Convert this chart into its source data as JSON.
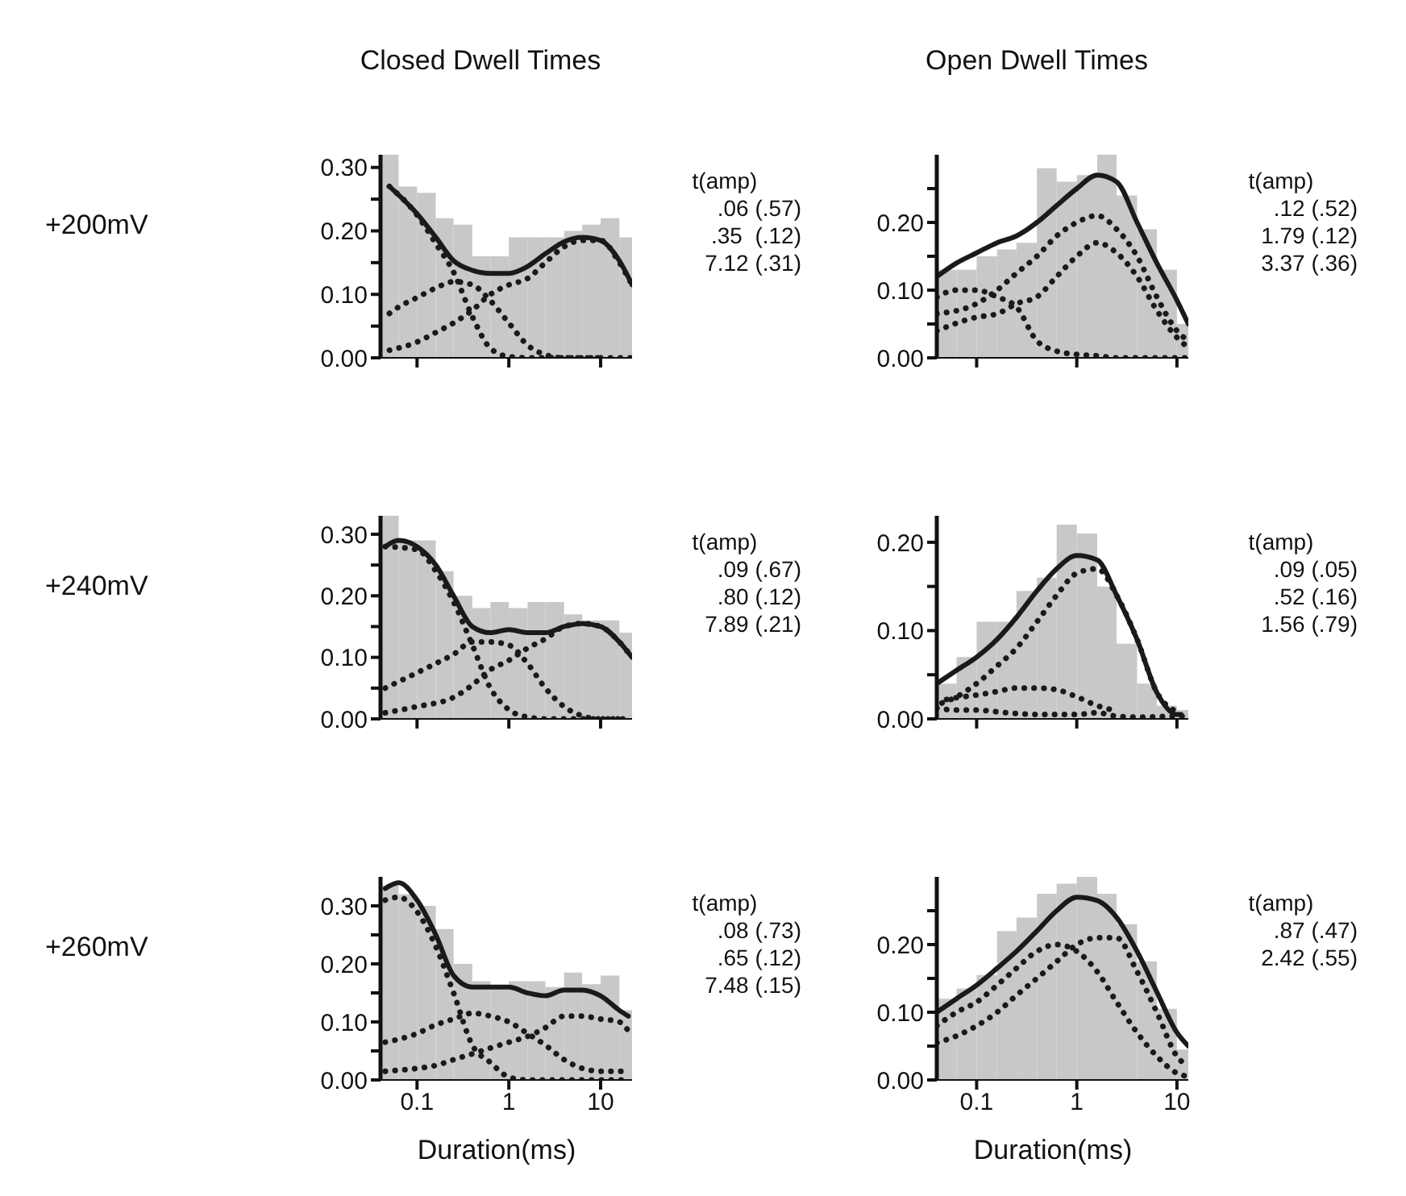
{
  "chart_data": [
    {
      "type": "histogram",
      "title": "Closed Dwell Times",
      "ylabel": "+200mV",
      "bins": [
        0.04,
        0.063,
        0.1,
        0.16,
        0.25,
        0.4,
        0.63,
        1,
        1.6,
        2.5,
        4,
        6.3,
        10,
        16,
        22
      ],
      "values": [
        0.32,
        0.27,
        0.26,
        0.22,
        0.21,
        0.16,
        0.16,
        0.19,
        0.19,
        0.19,
        0.2,
        0.21,
        0.22,
        0.19
      ],
      "color": "#c8c8c8",
      "xlim": [
        0.04,
        22
      ],
      "xticks": [
        0.1,
        1,
        10
      ],
      "ylim": [
        0,
        0.32
      ],
      "yticks": [
        {
          "value": 0,
          "label": "0.00"
        },
        {
          "value": 0.05,
          "label": null
        },
        {
          "value": 0.1,
          "label": "0.10"
        },
        {
          "value": 0.15,
          "label": null
        },
        {
          "value": 0.2,
          "label": "0.20"
        },
        {
          "value": 0.25,
          "label": null
        },
        {
          "value": 0.3,
          "label": "0.30"
        }
      ],
      "log": "x",
      "tick_labels": "y",
      "annotations": [
        "t(amp)",
        ".06 (.57)",
        ".35  (.12)",
        "7.12 (.31)"
      ],
      "series": [
        {
          "type": "line",
          "line_style": "solid",
          "color": "#1a1a1a",
          "x": [
            0.05,
            0.1,
            0.16,
            0.25,
            0.4,
            0.63,
            1,
            1.6,
            2.5,
            4,
            6.3,
            10,
            16,
            22
          ],
          "values": [
            0.27,
            0.227,
            0.19,
            0.153,
            0.138,
            0.133,
            0.133,
            0.144,
            0.164,
            0.183,
            0.19,
            0.185,
            0.153,
            0.115
          ]
        },
        {
          "type": "line",
          "line_style": "dotted",
          "color": "#1a1a1a",
          "x": [
            0.05,
            0.1,
            0.16,
            0.25,
            0.4,
            0.63,
            1,
            1.6,
            2.5,
            4,
            10,
            22
          ],
          "values": [
            0.27,
            0.225,
            0.18,
            0.135,
            0.065,
            0.015,
            0.002,
            0,
            0,
            0,
            0,
            0
          ]
        },
        {
          "type": "line",
          "line_style": "dotted",
          "color": "#1a1a1a",
          "x": [
            0.05,
            0.063,
            0.1,
            0.16,
            0.25,
            0.4,
            0.63,
            1,
            1.6,
            2.5,
            4,
            10
          ],
          "values": [
            0.07,
            0.08,
            0.095,
            0.11,
            0.12,
            0.115,
            0.09,
            0.055,
            0.02,
            0.005,
            0,
            0
          ]
        },
        {
          "type": "line",
          "line_style": "dotted",
          "color": "#1a1a1a",
          "x": [
            0.05,
            0.1,
            0.16,
            0.25,
            0.4,
            0.63,
            1,
            1.6,
            2.5,
            4,
            6.3,
            10,
            16,
            22
          ],
          "values": [
            0.012,
            0.025,
            0.04,
            0.055,
            0.075,
            0.1,
            0.115,
            0.125,
            0.15,
            0.175,
            0.185,
            0.185,
            0.15,
            0.115
          ]
        }
      ]
    },
    {
      "type": "histogram",
      "title": "Open Dwell Times",
      "bins": [
        0.04,
        0.063,
        0.1,
        0.16,
        0.25,
        0.4,
        0.63,
        1,
        1.6,
        2.5,
        4,
        6.3,
        10,
        13
      ],
      "values": [
        0.13,
        0.13,
        0.15,
        0.16,
        0.17,
        0.28,
        0.26,
        0.27,
        0.3,
        0.24,
        0.19,
        0.13,
        0.05
      ],
      "color": "#c8c8c8",
      "xlim": [
        0.04,
        13
      ],
      "xticks": [
        0.1,
        1,
        10
      ],
      "ylim": [
        0,
        0.3
      ],
      "yticks": [
        {
          "value": 0,
          "label": "0.00"
        },
        {
          "value": 0.05,
          "label": null
        },
        {
          "value": 0.1,
          "label": "0.10"
        },
        {
          "value": 0.15,
          "label": null
        },
        {
          "value": 0.2,
          "label": "0.20"
        },
        {
          "value": 0.25,
          "label": null
        }
      ],
      "log": "x",
      "tick_labels": "y",
      "annotations": [
        "t(amp)",
        ".12 (.52)",
        "1.79 (.12)",
        "3.37 (.36)"
      ],
      "series": [
        {
          "type": "line",
          "line_style": "solid",
          "color": "#1a1a1a",
          "x": [
            0.04,
            0.063,
            0.1,
            0.16,
            0.25,
            0.4,
            0.63,
            1,
            1.6,
            2.5,
            4,
            6.3,
            10,
            13
          ],
          "values": [
            0.12,
            0.14,
            0.155,
            0.17,
            0.18,
            0.2,
            0.225,
            0.25,
            0.27,
            0.26,
            0.2,
            0.14,
            0.085,
            0.05
          ]
        },
        {
          "type": "line",
          "line_style": "dotted",
          "color": "#1a1a1a",
          "x": [
            0.04,
            0.063,
            0.1,
            0.16,
            0.25,
            0.4,
            0.63,
            1,
            1.6,
            2.5,
            4,
            13
          ],
          "values": [
            0.09,
            0.1,
            0.1,
            0.09,
            0.075,
            0.025,
            0.01,
            0.005,
            0.003,
            0,
            0,
            0
          ]
        },
        {
          "type": "line",
          "line_style": "dotted",
          "color": "#1a1a1a",
          "x": [
            0.04,
            0.1,
            0.16,
            0.25,
            0.4,
            0.63,
            1,
            1.6,
            2.5,
            4,
            6.3,
            10,
            13
          ],
          "values": [
            0.04,
            0.06,
            0.065,
            0.08,
            0.09,
            0.12,
            0.15,
            0.17,
            0.155,
            0.12,
            0.07,
            0.03,
            0.015
          ]
        },
        {
          "type": "line",
          "line_style": "dotted",
          "color": "#1a1a1a",
          "x": [
            0.04,
            0.1,
            0.16,
            0.25,
            0.4,
            0.63,
            1,
            1.6,
            2.5,
            4,
            6.3,
            10,
            13
          ],
          "values": [
            0.065,
            0.08,
            0.1,
            0.125,
            0.15,
            0.18,
            0.2,
            0.21,
            0.19,
            0.15,
            0.09,
            0.04,
            0.025
          ]
        }
      ]
    },
    {
      "type": "histogram",
      "ylabel": "+240mV",
      "bins": [
        0.04,
        0.063,
        0.1,
        0.16,
        0.25,
        0.4,
        0.63,
        1,
        1.6,
        2.5,
        4,
        6.3,
        10,
        16,
        22
      ],
      "values": [
        0.33,
        0.29,
        0.29,
        0.24,
        0.2,
        0.18,
        0.19,
        0.18,
        0.19,
        0.19,
        0.17,
        0.16,
        0.16,
        0.14
      ],
      "color": "#c8c8c8",
      "xlim": [
        0.04,
        22
      ],
      "xticks": [
        0.1,
        1,
        10
      ],
      "ylim": [
        0,
        0.33
      ],
      "yticks": [
        {
          "value": 0,
          "label": "0.00"
        },
        {
          "value": 0.05,
          "label": null
        },
        {
          "value": 0.1,
          "label": "0.10"
        },
        {
          "value": 0.15,
          "label": null
        },
        {
          "value": 0.2,
          "label": "0.20"
        },
        {
          "value": 0.25,
          "label": null
        },
        {
          "value": 0.3,
          "label": "0.30"
        }
      ],
      "log": "x",
      "tick_labels": "y",
      "annotations": [
        "t(amp)",
        ".09 (.67)",
        ".80 (.12)",
        "7.89 (.21)"
      ],
      "series": [
        {
          "type": "line",
          "line_style": "solid",
          "color": "#1a1a1a",
          "x": [
            0.045,
            0.063,
            0.1,
            0.16,
            0.25,
            0.4,
            0.63,
            1,
            1.6,
            2.5,
            4,
            6.3,
            10,
            16,
            22
          ],
          "values": [
            0.28,
            0.29,
            0.28,
            0.25,
            0.2,
            0.15,
            0.14,
            0.145,
            0.14,
            0.14,
            0.15,
            0.155,
            0.15,
            0.125,
            0.1
          ]
        },
        {
          "type": "line",
          "line_style": "dotted",
          "color": "#1a1a1a",
          "x": [
            0.045,
            0.1,
            0.16,
            0.25,
            0.4,
            0.63,
            1,
            1.6,
            2.5,
            22
          ],
          "values": [
            0.28,
            0.275,
            0.24,
            0.19,
            0.12,
            0.05,
            0.015,
            0.003,
            0,
            0
          ]
        },
        {
          "type": "line",
          "line_style": "dotted",
          "color": "#1a1a1a",
          "x": [
            0.045,
            0.1,
            0.16,
            0.25,
            0.4,
            0.63,
            1,
            1.6,
            2.5,
            4,
            6.3,
            10,
            16
          ],
          "values": [
            0.05,
            0.075,
            0.09,
            0.105,
            0.125,
            0.125,
            0.12,
            0.09,
            0.05,
            0.02,
            0.005,
            0,
            0
          ]
        },
        {
          "type": "line",
          "line_style": "dotted",
          "color": "#1a1a1a",
          "x": [
            0.045,
            0.1,
            0.25,
            0.4,
            0.63,
            1,
            1.6,
            2.5,
            4,
            6.3,
            10,
            16,
            22
          ],
          "values": [
            0.01,
            0.02,
            0.035,
            0.055,
            0.08,
            0.095,
            0.115,
            0.13,
            0.15,
            0.155,
            0.15,
            0.125,
            0.1
          ]
        }
      ]
    },
    {
      "type": "histogram",
      "bins": [
        0.04,
        0.063,
        0.1,
        0.16,
        0.25,
        0.4,
        0.63,
        1,
        1.6,
        2.5,
        4,
        6.3,
        10,
        13
      ],
      "values": [
        0.04,
        0.07,
        0.11,
        0.11,
        0.145,
        0.16,
        0.22,
        0.21,
        0.15,
        0.085,
        0.04,
        0.015,
        0.01
      ],
      "color": "#c8c8c8",
      "xlim": [
        0.04,
        13
      ],
      "xticks": [
        0.1,
        1,
        10
      ],
      "ylim": [
        0,
        0.23
      ],
      "yticks": [
        {
          "value": 0,
          "label": "0.00"
        },
        {
          "value": 0.05,
          "label": null
        },
        {
          "value": 0.1,
          "label": "0.10"
        },
        {
          "value": 0.15,
          "label": null
        },
        {
          "value": 0.2,
          "label": "0.20"
        }
      ],
      "log": "x",
      "tick_labels": "y",
      "annotations": [
        "t(amp)",
        ".09 (.05)",
        ".52 (.16)",
        "1.56 (.79)"
      ],
      "series": [
        {
          "type": "line",
          "line_style": "solid",
          "color": "#1a1a1a",
          "x": [
            0.04,
            0.063,
            0.1,
            0.16,
            0.25,
            0.4,
            0.63,
            1,
            1.6,
            2.5,
            4,
            6.3,
            10,
            11
          ],
          "values": [
            0.04,
            0.055,
            0.07,
            0.09,
            0.115,
            0.145,
            0.17,
            0.185,
            0.18,
            0.14,
            0.09,
            0.03,
            0.005,
            0.005
          ]
        },
        {
          "type": "line",
          "line_style": "dotted",
          "color": "#1a1a1a",
          "x": [
            0.04,
            0.063,
            0.1,
            0.16,
            0.25,
            0.4,
            0.63,
            1,
            1.6,
            2.5,
            4,
            10,
            13
          ],
          "values": [
            0.012,
            0.01,
            0.01,
            0.008,
            0.006,
            0.005,
            0.005,
            0.005,
            0.007,
            0.003,
            0.002,
            0.003,
            0.003
          ]
        },
        {
          "type": "line",
          "line_style": "dotted",
          "color": "#1a1a1a",
          "x": [
            0.05,
            0.063,
            0.1,
            0.16,
            0.25,
            0.4,
            0.63,
            1,
            1.6,
            2.5
          ],
          "values": [
            0.022,
            0.024,
            0.027,
            0.031,
            0.035,
            0.035,
            0.033,
            0.025,
            0.015,
            0.009
          ]
        },
        {
          "type": "line",
          "line_style": "dotted",
          "color": "#1a1a1a",
          "x": [
            0.045,
            0.063,
            0.1,
            0.16,
            0.25,
            0.4,
            0.63,
            1,
            1.6,
            2.5,
            4,
            6.3,
            10
          ],
          "values": [
            0.018,
            0.025,
            0.04,
            0.06,
            0.08,
            0.11,
            0.14,
            0.165,
            0.17,
            0.14,
            0.09,
            0.03,
            0.008
          ]
        }
      ]
    },
    {
      "type": "histogram",
      "ylabel": "+260mV",
      "xlabel": "Duration(ms)",
      "bins": [
        0.04,
        0.063,
        0.1,
        0.16,
        0.25,
        0.4,
        0.63,
        1,
        1.6,
        2.5,
        4,
        6.3,
        10,
        16,
        22
      ],
      "values": [
        0.335,
        0.32,
        0.3,
        0.26,
        0.2,
        0.17,
        0.16,
        0.17,
        0.17,
        0.16,
        0.185,
        0.165,
        0.18,
        0.12
      ],
      "color": "#c8c8c8",
      "xlim": [
        0.04,
        22
      ],
      "xticks": [
        0.1,
        1,
        10
      ],
      "ylim": [
        0,
        0.35
      ],
      "yticks": [
        {
          "value": 0,
          "label": "0.00"
        },
        {
          "value": 0.05,
          "label": null
        },
        {
          "value": 0.1,
          "label": "0.10"
        },
        {
          "value": 0.15,
          "label": null
        },
        {
          "value": 0.2,
          "label": "0.20"
        },
        {
          "value": 0.25,
          "label": null
        },
        {
          "value": 0.3,
          "label": "0.30"
        }
      ],
      "log": "x",
      "annotations": [
        "t(amp)",
        ".08 (.73)",
        ".65 (.12)",
        "7.48 (.15)"
      ],
      "series": [
        {
          "type": "line",
          "line_style": "solid",
          "color": "#1a1a1a",
          "x": [
            0.045,
            0.063,
            0.1,
            0.16,
            0.25,
            0.4,
            0.63,
            1,
            1.6,
            2.5,
            4,
            6.3,
            10,
            16,
            20
          ],
          "values": [
            0.33,
            0.34,
            0.31,
            0.25,
            0.18,
            0.16,
            0.16,
            0.16,
            0.15,
            0.145,
            0.155,
            0.155,
            0.145,
            0.12,
            0.11
          ]
        },
        {
          "type": "line",
          "line_style": "dotted",
          "color": "#1a1a1a",
          "x": [
            0.045,
            0.063,
            0.1,
            0.16,
            0.25,
            0.4,
            0.63,
            1,
            1.6,
            20
          ],
          "values": [
            0.31,
            0.315,
            0.29,
            0.23,
            0.15,
            0.06,
            0.03,
            0.005,
            0,
            0
          ]
        },
        {
          "type": "line",
          "line_style": "dotted",
          "color": "#1a1a1a",
          "x": [
            0.045,
            0.1,
            0.16,
            0.25,
            0.4,
            0.63,
            1,
            1.6,
            2.5,
            4,
            6.3,
            10,
            20
          ],
          "values": [
            0.065,
            0.08,
            0.095,
            0.105,
            0.115,
            0.11,
            0.1,
            0.08,
            0.06,
            0.035,
            0.02,
            0.015,
            0.015
          ]
        },
        {
          "type": "line",
          "line_style": "dotted",
          "color": "#1a1a1a",
          "x": [
            0.045,
            0.1,
            0.16,
            0.25,
            0.4,
            0.63,
            1,
            1.6,
            2.5,
            4,
            6.3,
            10,
            16,
            20
          ],
          "values": [
            0.015,
            0.02,
            0.025,
            0.035,
            0.045,
            0.055,
            0.065,
            0.075,
            0.09,
            0.11,
            0.11,
            0.105,
            0.1,
            0.085
          ]
        }
      ]
    },
    {
      "type": "histogram",
      "xlabel": "Duration(ms)",
      "bins": [
        0.04,
        0.063,
        0.1,
        0.16,
        0.25,
        0.4,
        0.63,
        1,
        1.6,
        2.5,
        4,
        6.3,
        10,
        13
      ],
      "values": [
        0.12,
        0.135,
        0.155,
        0.22,
        0.24,
        0.275,
        0.29,
        0.3,
        0.275,
        0.23,
        0.175,
        0.105,
        0.045
      ],
      "color": "#c8c8c8",
      "xlim": [
        0.04,
        13
      ],
      "xticks": [
        0.1,
        1,
        10
      ],
      "ylim": [
        0,
        0.3
      ],
      "yticks": [
        {
          "value": 0,
          "label": "0.00"
        },
        {
          "value": 0.05,
          "label": null
        },
        {
          "value": 0.1,
          "label": "0.10"
        },
        {
          "value": 0.15,
          "label": null
        },
        {
          "value": 0.2,
          "label": "0.20"
        },
        {
          "value": 0.25,
          "label": null
        }
      ],
      "log": "x",
      "annotations": [
        "t(amp)",
        ".87 (.47)",
        "2.42 (.55)"
      ],
      "series": [
        {
          "type": "line",
          "line_style": "solid",
          "color": "#1a1a1a",
          "x": [
            0.04,
            0.063,
            0.1,
            0.16,
            0.25,
            0.4,
            0.63,
            1,
            1.6,
            2.5,
            4,
            6.3,
            10,
            13
          ],
          "values": [
            0.1,
            0.12,
            0.14,
            0.165,
            0.19,
            0.22,
            0.25,
            0.27,
            0.265,
            0.24,
            0.19,
            0.13,
            0.07,
            0.05
          ]
        },
        {
          "type": "line",
          "line_style": "dotted",
          "color": "#1a1a1a",
          "x": [
            0.04,
            0.063,
            0.1,
            0.16,
            0.25,
            0.4,
            0.63,
            1,
            1.6,
            2.5,
            4,
            6.3,
            10,
            13
          ],
          "values": [
            0.08,
            0.1,
            0.115,
            0.14,
            0.165,
            0.19,
            0.2,
            0.19,
            0.16,
            0.115,
            0.07,
            0.035,
            0.01,
            0.005
          ]
        },
        {
          "type": "line",
          "line_style": "dotted",
          "color": "#1a1a1a",
          "x": [
            0.04,
            0.063,
            0.1,
            0.16,
            0.25,
            0.4,
            0.63,
            1,
            1.6,
            2.5,
            4,
            6.3,
            10,
            13
          ],
          "values": [
            0.055,
            0.065,
            0.08,
            0.1,
            0.125,
            0.15,
            0.175,
            0.2,
            0.21,
            0.21,
            0.16,
            0.1,
            0.035,
            0.02
          ]
        }
      ]
    }
  ]
}
